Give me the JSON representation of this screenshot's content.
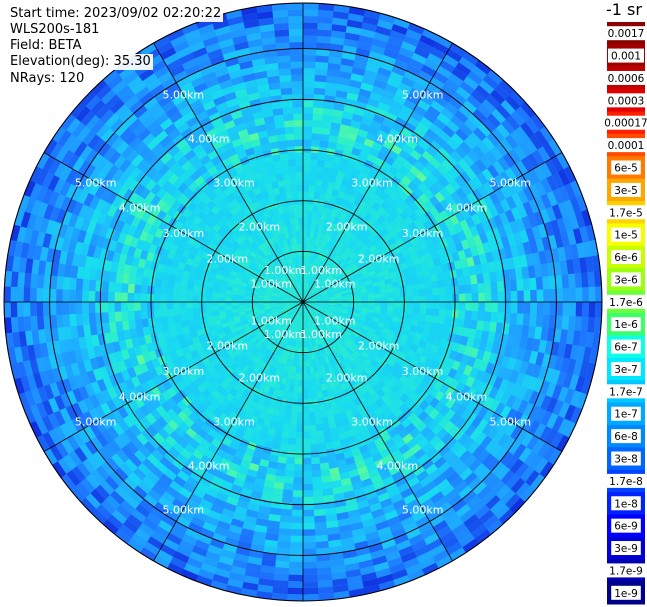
{
  "header": {
    "start_time": "Start time: 2023/09/02 02:20:22",
    "instrument": "WLS200s-181",
    "field": "Field: BETA",
    "elevation": "Elevation(deg): 35.30",
    "nrays": "NRays: 120"
  },
  "colorbar": {
    "unit_label": "-1 sr",
    "labels": [
      "0.0017",
      "0.001",
      "0.0006",
      "0.0003",
      "0.00017",
      "0.0001",
      "6e-5",
      "3e-5",
      "1.7e-5",
      "1e-5",
      "6e-6",
      "3e-6",
      "1.7e-6",
      "1e-6",
      "6e-7",
      "3e-7",
      "1.7e-7",
      "1e-7",
      "6e-8",
      "3e-8",
      "1.7e-8",
      "1e-8",
      "6e-9",
      "3e-9",
      "1.7e-9",
      "1e-9"
    ],
    "colors": [
      "#8b0000",
      "#a40000",
      "#c00000",
      "#e00000",
      "#ff1f00",
      "#ff4c00",
      "#ff7a00",
      "#ffa600",
      "#ffd200",
      "#f6ff00",
      "#c8ff00",
      "#9bff0f",
      "#6bff3d",
      "#3dff6b",
      "#0fffe4",
      "#00e8ff",
      "#00c8ff",
      "#00a8ff",
      "#0088ff",
      "#0066ff",
      "#0044ff",
      "#0022ff",
      "#0000ff",
      "#0000d8",
      "#0000b0",
      "#000088"
    ]
  },
  "chart_data": {
    "type": "heatmap",
    "projection": "polar PPI",
    "range_ring_labels": [
      "1.00km",
      "2.00km",
      "3.00km",
      "4.00km",
      "5.00km"
    ],
    "range_rings_km": [
      1,
      2,
      3,
      4,
      5
    ],
    "max_range_km": 5.9,
    "azimuth_lines_deg": [
      0,
      30,
      60,
      90,
      120,
      150,
      180,
      210,
      240,
      270,
      300,
      330
    ],
    "nrays": 120,
    "field": "BETA",
    "elevation_deg": 35.3,
    "value_range": [
      1e-09,
      0.0017
    ],
    "log_scale": true
  }
}
